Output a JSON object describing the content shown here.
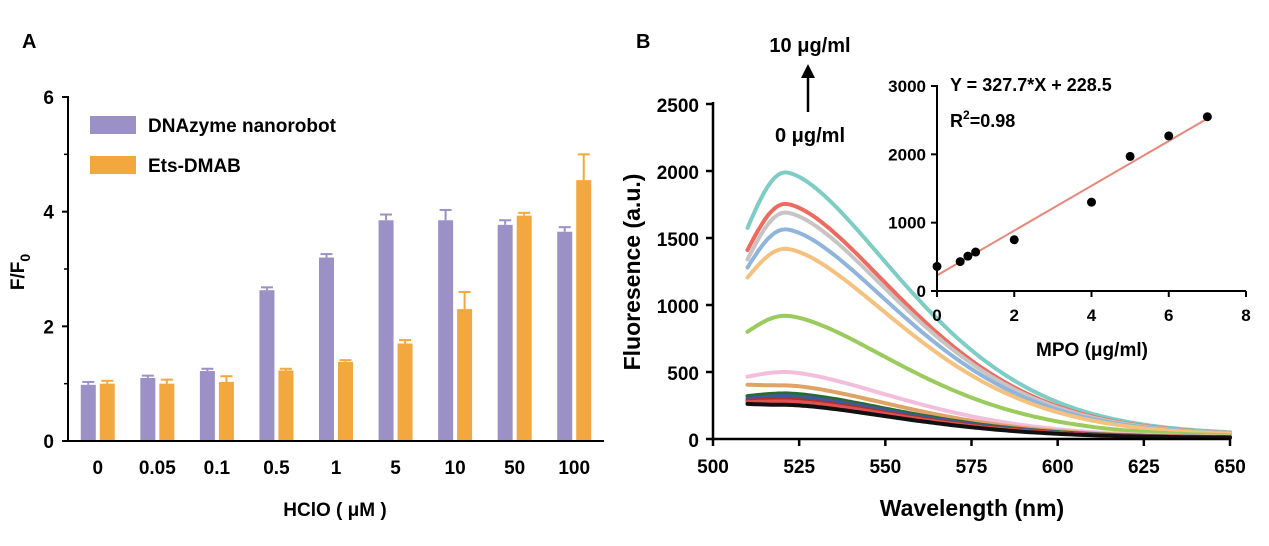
{
  "chart_data": [
    {
      "panel": "A",
      "type": "bar",
      "categories": [
        "0",
        "0.05",
        "0.1",
        "0.5",
        "1",
        "5",
        "10",
        "50",
        "100"
      ],
      "xlabel": "HClO ( μM )",
      "ylabel": "F/F0",
      "ylabel_main": "F/F",
      "ylabel_sub": "0",
      "ylim": [
        0,
        6
      ],
      "yticks": [
        "0",
        "2",
        "4",
        "6"
      ],
      "legend_position": "top-left",
      "series": [
        {
          "name": "DNAzyme nanorobot",
          "color": "#9b91c6",
          "values": [
            0.98,
            1.1,
            1.22,
            2.63,
            3.2,
            3.85,
            3.85,
            3.77,
            3.65
          ],
          "errors": [
            0.05,
            0.04,
            0.04,
            0.05,
            0.06,
            0.1,
            0.18,
            0.08,
            0.08
          ]
        },
        {
          "name": "Ets-DMAB",
          "color": "#f2a73f",
          "values": [
            1.0,
            1.0,
            1.03,
            1.23,
            1.38,
            1.7,
            2.3,
            3.93,
            4.55
          ],
          "errors": [
            0.05,
            0.07,
            0.1,
            0.03,
            0.03,
            0.06,
            0.3,
            0.05,
            0.45
          ]
        }
      ]
    },
    {
      "panel": "B",
      "type": "line",
      "xlabel": "Wavelength (nm)",
      "ylabel": "Fluoresence (a.u.)",
      "xlim": [
        500,
        650
      ],
      "ylim": [
        0,
        2500
      ],
      "xticks": [
        "500",
        "525",
        "550",
        "575",
        "600",
        "625",
        "650"
      ],
      "yticks": [
        "0",
        "500",
        "1000",
        "1500",
        "2000",
        "2500"
      ],
      "annotation_top": "10 μg/ml",
      "annotation_bottom": "0 μg/ml",
      "x_start": 510,
      "x_end": 650,
      "peak_x": 521,
      "series": [
        {
          "peak": 1990,
          "start": 1575,
          "end": 30,
          "color": "#7ecdc4"
        },
        {
          "peak": 1755,
          "start": 1410,
          "end": 28,
          "color": "#ee6a5e"
        },
        {
          "peak": 1690,
          "start": 1340,
          "end": 27,
          "color": "#c8c4c4"
        },
        {
          "peak": 1565,
          "start": 1280,
          "end": 26,
          "color": "#8fb5dc"
        },
        {
          "peak": 1420,
          "start": 1205,
          "end": 25,
          "color": "#f4c27e"
        },
        {
          "peak": 920,
          "start": 800,
          "end": 18,
          "color": "#9acb5c"
        },
        {
          "peak": 500,
          "start": 465,
          "end": 12,
          "color": "#f3bedc"
        },
        {
          "peak": 400,
          "start": 405,
          "end": 11,
          "color": "#e0a265"
        },
        {
          "peak": 340,
          "start": 320,
          "end": 10,
          "color": "#2b6a2f"
        },
        {
          "peak": 320,
          "start": 300,
          "end": 10,
          "color": "#3a5b9c"
        },
        {
          "peak": 295,
          "start": 285,
          "end": 9,
          "color": "#b03030"
        },
        {
          "peak": 280,
          "start": 275,
          "end": 9,
          "color": "#e05050"
        },
        {
          "peak": 255,
          "start": 262,
          "end": 8,
          "color": "#111111"
        }
      ]
    },
    {
      "panel": "B-inset",
      "type": "scatter",
      "xlabel": "MPO (μg/ml)",
      "ylabel": "",
      "xlim": [
        0,
        8
      ],
      "ylim": [
        0,
        3000
      ],
      "xticks": [
        "0",
        "2",
        "4",
        "6",
        "8"
      ],
      "yticks": [
        "0",
        "1000",
        "2000",
        "3000"
      ],
      "points": [
        {
          "x": 0,
          "y": 360
        },
        {
          "x": 0.6,
          "y": 430
        },
        {
          "x": 0.8,
          "y": 510
        },
        {
          "x": 1.0,
          "y": 570
        },
        {
          "x": 2.0,
          "y": 750
        },
        {
          "x": 4.0,
          "y": 1300
        },
        {
          "x": 5.0,
          "y": 1970
        },
        {
          "x": 6.0,
          "y": 2270
        },
        {
          "x": 7.0,
          "y": 2550
        }
      ],
      "fit": {
        "slope": 327.7,
        "intercept": 228.5,
        "x_range": [
          0,
          7
        ],
        "color": "#e8877a"
      },
      "equation": "Y = 327.7*X + 228.5",
      "r2_main": "R",
      "r2_sup": "2",
      "r2_value": "=0.98"
    }
  ],
  "panels": {
    "a_label": "A",
    "b_label": "B"
  }
}
